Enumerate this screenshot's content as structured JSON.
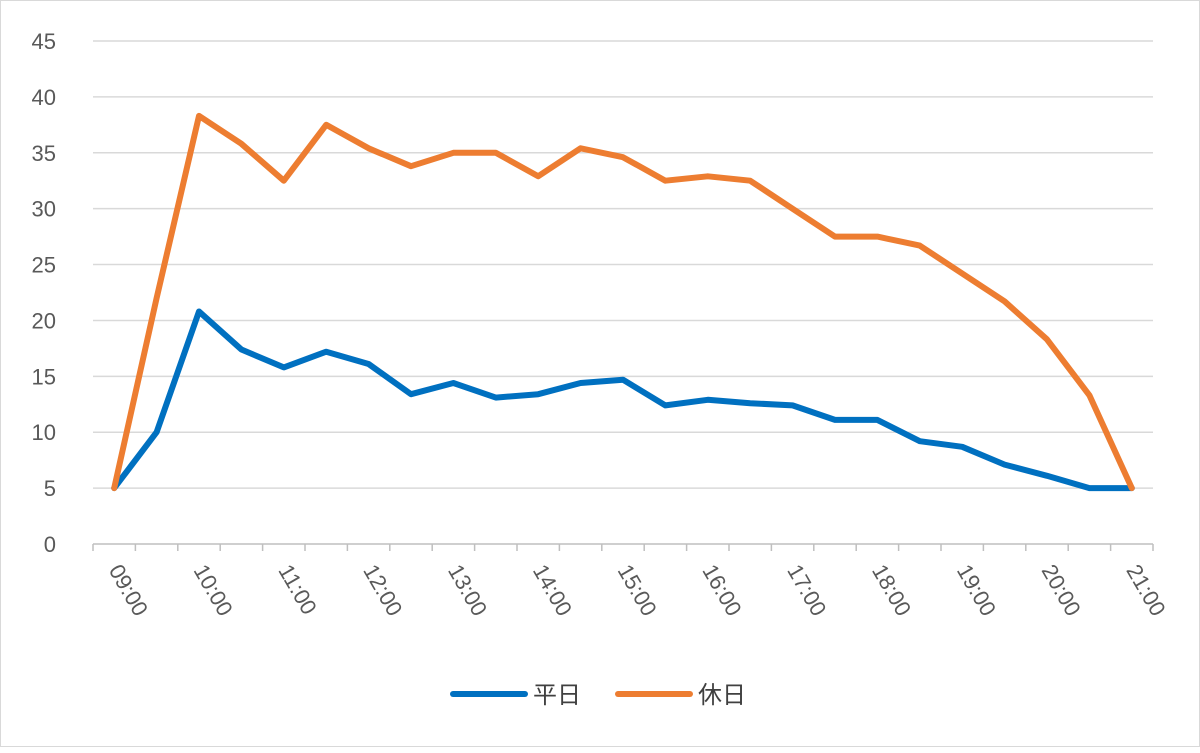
{
  "chart_data": {
    "type": "line",
    "title": "",
    "xlabel": "",
    "ylabel": "",
    "ylim": [
      0,
      45
    ],
    "yticks": [
      0,
      5,
      10,
      15,
      20,
      25,
      30,
      35,
      40,
      45
    ],
    "grid": true,
    "legend_position": "bottom",
    "tick_labels": [
      "09:00",
      "10:00",
      "11:00",
      "12:00",
      "13:00",
      "14:00",
      "15:00",
      "16:00",
      "17:00",
      "18:00",
      "19:00",
      "20:00",
      "21:00"
    ],
    "x": [
      "09:00",
      "09:30",
      "10:00",
      "10:30",
      "11:00",
      "11:30",
      "12:00",
      "12:30",
      "13:00",
      "13:30",
      "14:00",
      "14:30",
      "15:00",
      "15:30",
      "16:00",
      "16:30",
      "17:00",
      "17:30",
      "18:00",
      "18:30",
      "19:00",
      "19:30",
      "20:00",
      "20:30",
      "21:00"
    ],
    "series": [
      {
        "name": "平日",
        "color": "#0070C0",
        "values": [
          5,
          10,
          20.8,
          17.4,
          15.8,
          17.2,
          16.1,
          13.4,
          14.4,
          13.1,
          13.4,
          14.4,
          14.7,
          12.4,
          12.9,
          12.6,
          12.4,
          11.1,
          11.1,
          9.2,
          8.7,
          7.1,
          6.1,
          5,
          5
        ]
      },
      {
        "name": "休日",
        "color": "#ED7D31",
        "values": [
          5,
          22,
          38.3,
          35.8,
          32.5,
          37.5,
          35.4,
          33.8,
          35,
          35,
          32.9,
          35.4,
          34.6,
          32.5,
          32.9,
          32.5,
          30,
          27.5,
          27.5,
          26.7,
          24.2,
          21.7,
          18.3,
          13.3,
          5
        ]
      }
    ]
  }
}
